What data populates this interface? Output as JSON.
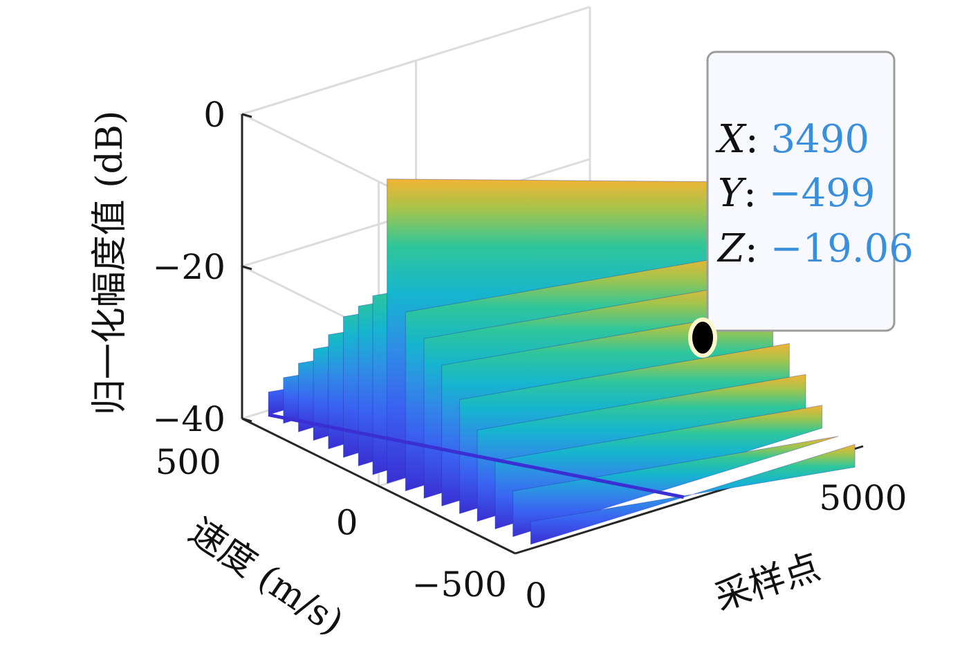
{
  "chart_data": {
    "type": "surface",
    "xlabel": "采样点",
    "ylabel": "速度 (m/s)",
    "zlabel": "归一化幅度值 (dB)",
    "xlim": [
      0,
      5000
    ],
    "ylim": [
      -500,
      500
    ],
    "zlim": [
      -40,
      0
    ],
    "x_ticks": [
      "0",
      "5000"
    ],
    "y_ticks": [
      "500",
      "0",
      "-500"
    ],
    "z_ticks": [
      "0",
      "-20",
      "-40"
    ],
    "grid": true,
    "colormap": "parula",
    "ridges": [
      {
        "x_start": 120,
        "x_end": 4960,
        "y": 0,
        "z_peak": 0
      },
      {
        "x_start": 150,
        "x_end": 4960,
        "y": 60,
        "z_peak": -16.5
      },
      {
        "x_start": 150,
        "x_end": 4960,
        "y": -60,
        "z_peak": -16.5
      },
      {
        "x_start": 180,
        "x_end": 4960,
        "y": 120,
        "z_peak": -19
      },
      {
        "x_start": 180,
        "x_end": 4960,
        "y": -120,
        "z_peak": -19
      },
      {
        "x_start": 200,
        "x_end": 4960,
        "y": 180,
        "z_peak": -21.5
      },
      {
        "x_start": 200,
        "x_end": 4960,
        "y": -180,
        "z_peak": -21.5
      },
      {
        "x_start": 220,
        "x_end": 4960,
        "y": 240,
        "z_peak": -25
      },
      {
        "x_start": 220,
        "x_end": 4960,
        "y": -240,
        "z_peak": -25
      },
      {
        "x_start": 240,
        "x_end": 4960,
        "y": 300,
        "z_peak": -28
      },
      {
        "x_start": 240,
        "x_end": 4960,
        "y": -300,
        "z_peak": -28
      },
      {
        "x_start": 260,
        "x_end": 4960,
        "y": 360,
        "z_peak": -31
      },
      {
        "x_start": 260,
        "x_end": 4960,
        "y": -360,
        "z_peak": -31
      },
      {
        "x_start": 280,
        "x_end": 4960,
        "y": 420,
        "z_peak": -34
      },
      {
        "x_start": 280,
        "x_end": 4960,
        "y": -420,
        "z_peak": -34
      },
      {
        "x_start": 300,
        "x_end": 4960,
        "y": 480,
        "z_peak": -37
      },
      {
        "x_start": 300,
        "x_end": 4960,
        "y": -480,
        "z_peak": -37
      }
    ],
    "datatip": {
      "x": 3490,
      "y": -499,
      "z": -19.06
    }
  },
  "datatip": {
    "x_label": "X",
    "x_value": "3490",
    "y_label": "Y",
    "y_value": "−499",
    "z_label": "Z",
    "z_value": "−19.06"
  },
  "colors": {
    "axis": "#262626",
    "grid": "#dcdcdc",
    "tip_value": "#3a8fdc",
    "tip_background": "#f8f9ff",
    "tip_border": "#9c9c9c"
  }
}
